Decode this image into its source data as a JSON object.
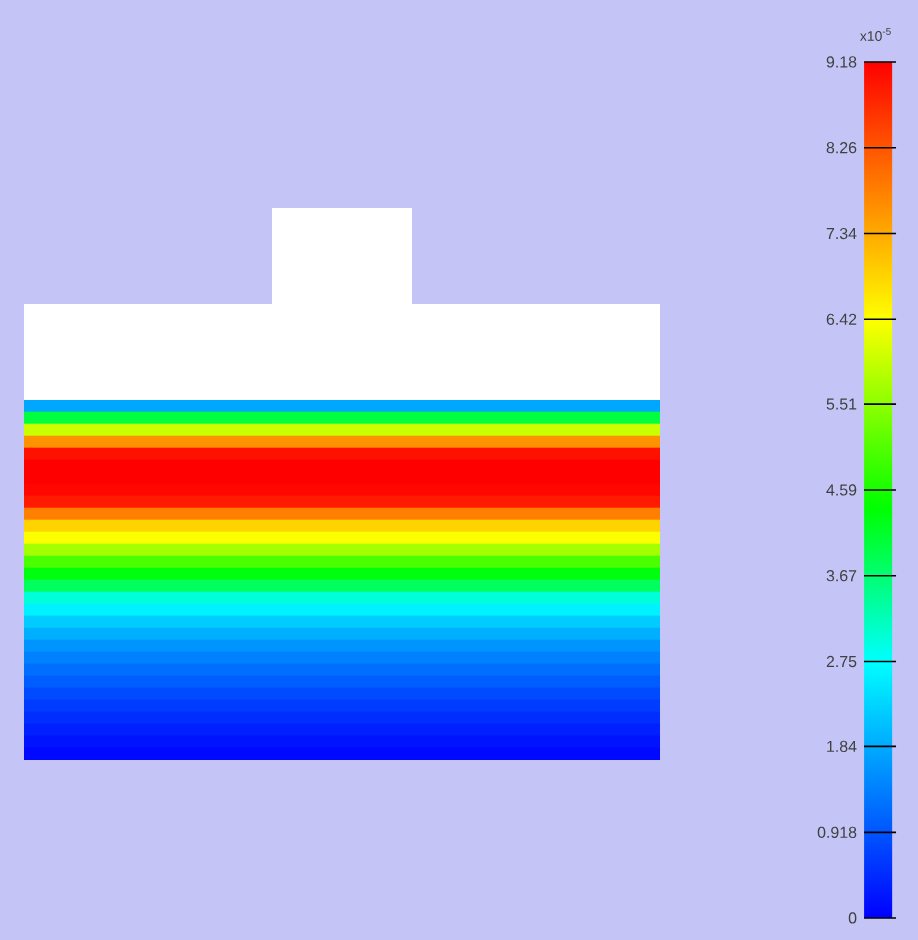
{
  "chart_data": {
    "type": "heatmap",
    "clabel": "x10$^{-5}$",
    "categories": [
      null
    ],
    "y_categories": [
      null,
      null,
      null,
      null,
      null,
      null,
      null,
      null,
      null,
      null,
      null,
      null,
      null,
      null,
      null,
      null,
      null,
      null,
      null,
      null,
      null,
      null,
      null,
      null,
      null,
      null,
      null,
      null,
      null,
      null
    ],
    "cells": [
      [
        1.8
      ],
      [
        4.0
      ],
      [
        6.0
      ],
      [
        7.6
      ],
      [
        9.0
      ],
      [
        9.18
      ],
      [
        9.18
      ],
      [
        9.1
      ],
      [
        8.9
      ],
      [
        7.8
      ],
      [
        6.9
      ],
      [
        6.4
      ],
      [
        5.7
      ],
      [
        5.0
      ],
      [
        4.3
      ],
      [
        3.8
      ],
      [
        3.0
      ],
      [
        2.6
      ],
      [
        2.2
      ],
      [
        1.9
      ],
      [
        1.6
      ],
      [
        1.4
      ],
      [
        1.2
      ],
      [
        1.0
      ],
      [
        0.8
      ],
      [
        0.65
      ],
      [
        0.5
      ],
      [
        0.35
      ],
      [
        0.2
      ],
      [
        0.1
      ]
    ],
    "clim": [
      0,
      9.18
    ],
    "cticks": [
      0,
      0.918,
      1.84,
      2.75,
      3.67,
      4.59,
      5.51,
      6.42,
      7.34,
      8.26,
      9.18
    ]
  }
}
